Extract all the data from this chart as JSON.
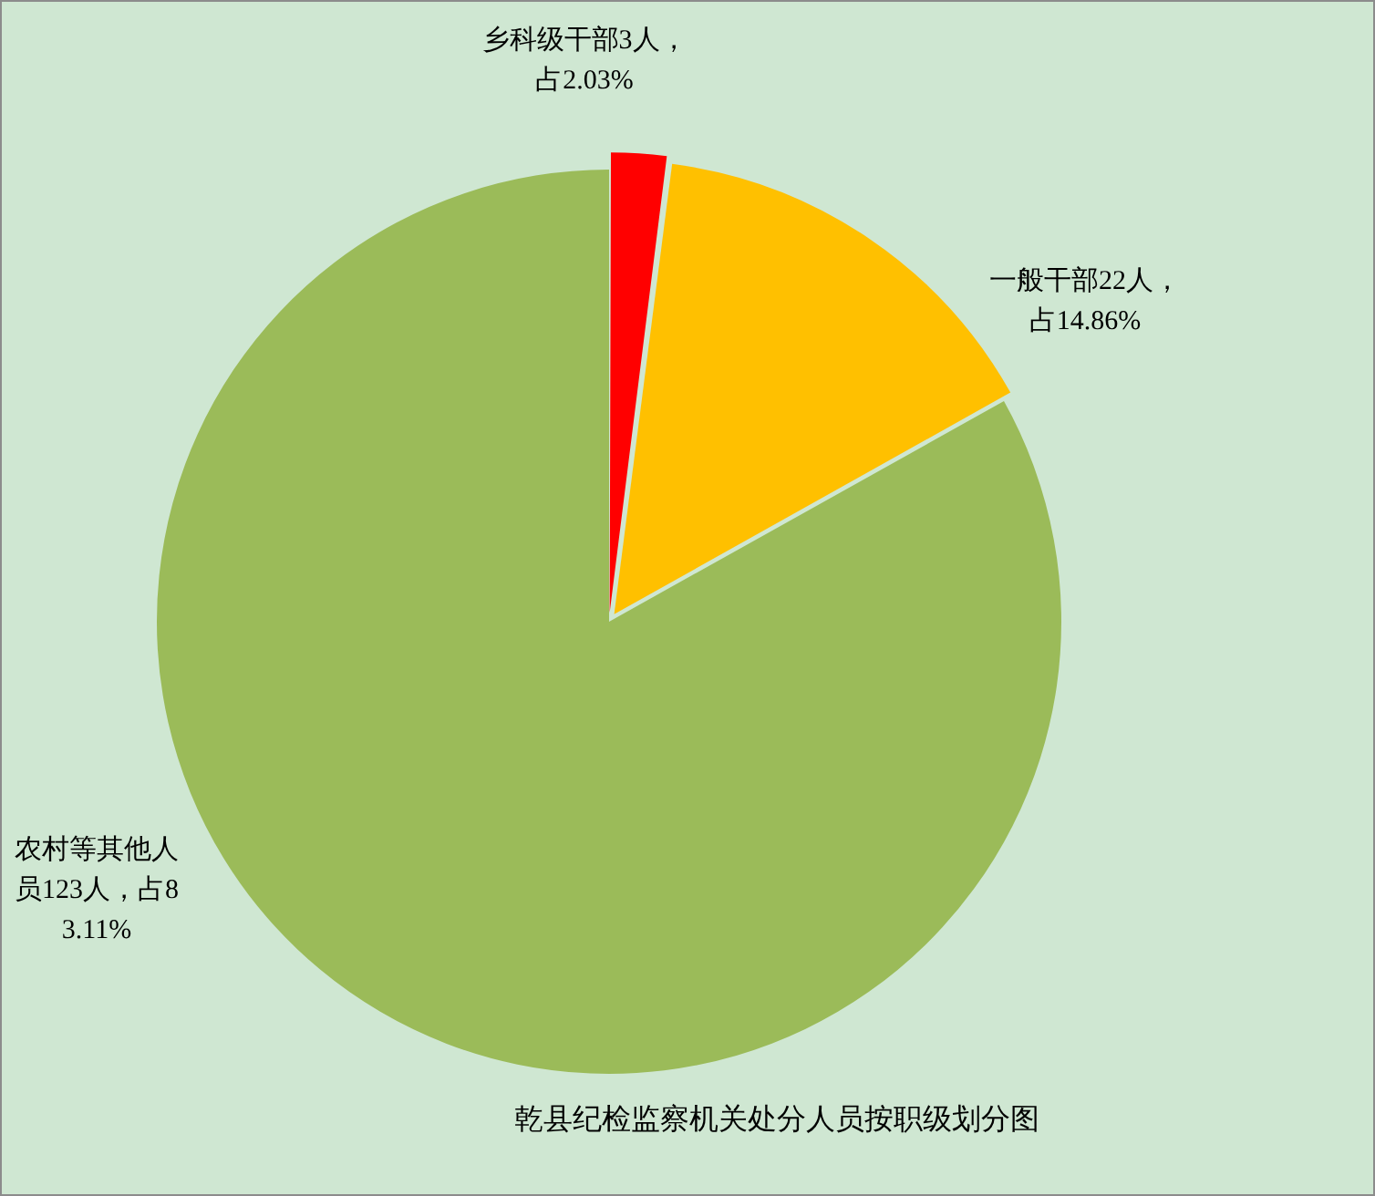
{
  "chart_data": {
    "type": "pie",
    "title": "乾县纪检监察机关处分人员按职级划分图",
    "categories": [
      "乡科级干部",
      "一般干部",
      "农村等其他人员"
    ],
    "values": [
      3,
      22,
      123
    ],
    "colors": [
      "#ff0000",
      "#ffc000",
      "#9bbb59"
    ],
    "value_labels": [
      "3人，占2.03%",
      "22人，占14.86%",
      "123人，占83.11%"
    ]
  }
}
